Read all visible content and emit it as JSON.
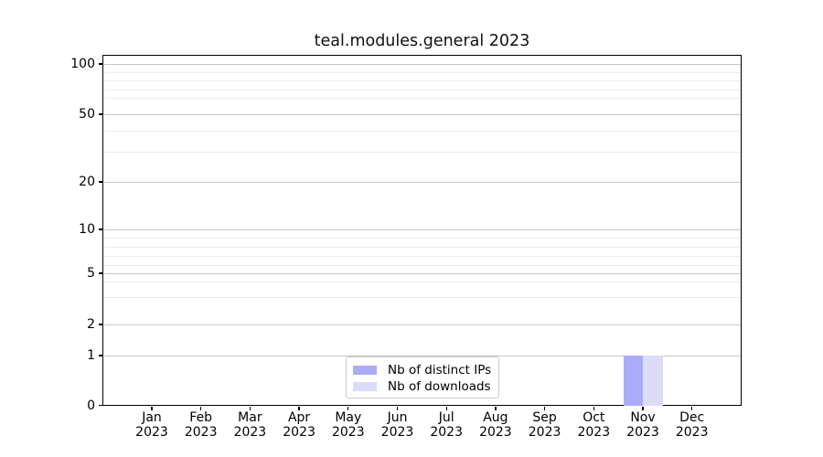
{
  "chart_data": {
    "type": "bar",
    "title": "teal.modules.general 2023",
    "x": {
      "categories": [
        "Jan",
        "Feb",
        "Mar",
        "Apr",
        "May",
        "Jun",
        "Jul",
        "Aug",
        "Sep",
        "Oct",
        "Nov",
        "Dec"
      ],
      "year_label": "2023"
    },
    "y_axis": {
      "scale": "log-like",
      "range": [
        0,
        100
      ],
      "major_ticks": [
        0,
        1,
        2,
        5,
        10,
        20,
        50,
        100
      ],
      "minor_ticks": [
        3,
        4,
        6,
        7,
        8,
        9,
        30,
        40,
        60,
        70,
        80,
        90
      ]
    },
    "series": [
      {
        "name": "Nb of distinct IPs",
        "color": "#abacf8",
        "values": [
          0,
          0,
          0,
          0,
          0,
          0,
          0,
          0,
          0,
          0,
          1,
          0
        ]
      },
      {
        "name": "Nb of downloads",
        "color": "#dcdcf9",
        "values": [
          0,
          0,
          0,
          0,
          0,
          0,
          0,
          0,
          0,
          0,
          1,
          0
        ]
      }
    ],
    "legend": {
      "position": "bottom-center",
      "entries": [
        "Nb of distinct IPs",
        "Nb of downloads"
      ]
    },
    "grid": {
      "major_color": "#c6c6c6",
      "minor_color": "#ececec"
    }
  }
}
